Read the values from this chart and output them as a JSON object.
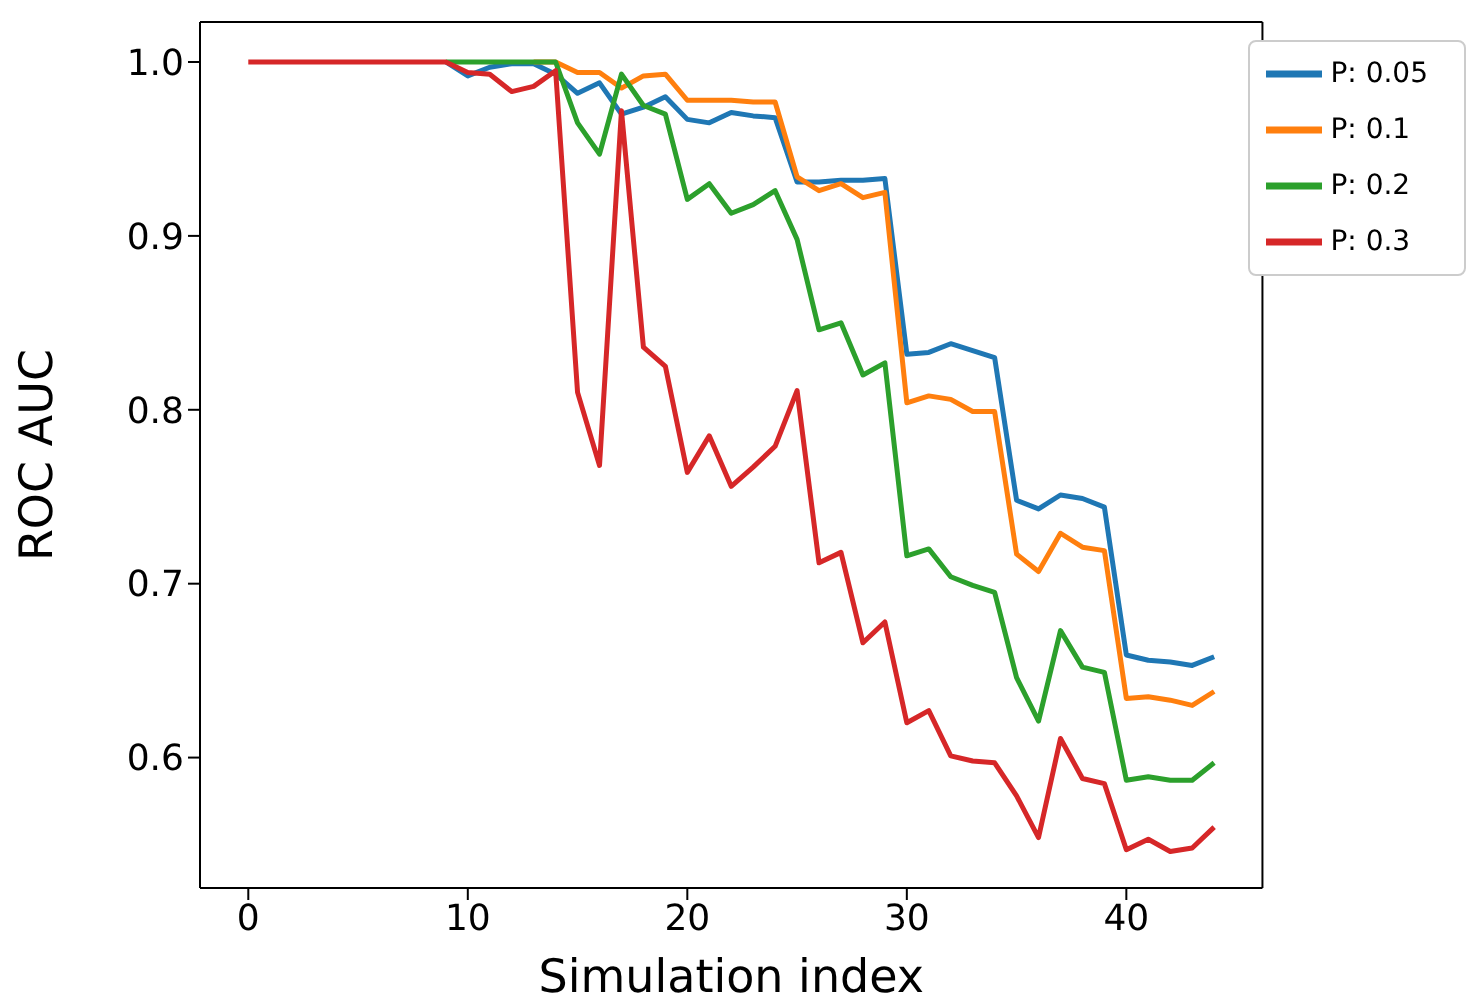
{
  "chart_data": {
    "type": "line",
    "xlabel": "Simulation index",
    "ylabel": "ROC AUC",
    "x": [
      0,
      1,
      2,
      3,
      4,
      5,
      6,
      7,
      8,
      9,
      10,
      11,
      12,
      13,
      14,
      15,
      16,
      17,
      18,
      19,
      20,
      21,
      22,
      23,
      24,
      25,
      26,
      27,
      28,
      29,
      30,
      31,
      32,
      33,
      34,
      35,
      36,
      37,
      38,
      39,
      40,
      41,
      42,
      43,
      44
    ],
    "series": [
      {
        "name": "P: 0.05",
        "color": "#1f77b4",
        "values": [
          null,
          null,
          null,
          null,
          null,
          null,
          null,
          null,
          null,
          1.0,
          0.992,
          0.997,
          0.999,
          0.999,
          0.993,
          0.982,
          0.988,
          0.97,
          0.974,
          0.98,
          0.967,
          0.965,
          0.971,
          0.969,
          0.968,
          0.931,
          0.931,
          0.932,
          0.932,
          0.933,
          0.832,
          0.833,
          0.838,
          0.834,
          0.83,
          0.748,
          0.743,
          0.751,
          0.749,
          0.744,
          0.659,
          0.656,
          0.655,
          0.653,
          0.658
        ]
      },
      {
        "name": "P: 0.1",
        "color": "#ff7f0e",
        "values": [
          null,
          null,
          null,
          null,
          null,
          null,
          null,
          null,
          null,
          null,
          null,
          null,
          null,
          1.0,
          1.0,
          0.994,
          0.994,
          0.985,
          0.992,
          0.993,
          0.978,
          0.978,
          0.978,
          0.977,
          0.977,
          0.934,
          0.926,
          0.93,
          0.922,
          0.925,
          0.804,
          0.808,
          0.806,
          0.799,
          0.799,
          0.717,
          0.707,
          0.729,
          0.721,
          0.719,
          0.634,
          0.635,
          0.633,
          0.63,
          0.638
        ]
      },
      {
        "name": "P: 0.2",
        "color": "#2ca02c",
        "values": [
          null,
          null,
          null,
          null,
          null,
          null,
          null,
          null,
          null,
          1.0,
          1.0,
          1.0,
          1.0,
          1.0,
          1.0,
          0.965,
          0.947,
          0.993,
          0.975,
          0.97,
          0.921,
          0.93,
          0.913,
          0.918,
          0.926,
          0.898,
          0.846,
          0.85,
          0.82,
          0.827,
          0.716,
          0.72,
          0.704,
          0.699,
          0.695,
          0.646,
          0.621,
          0.673,
          0.652,
          0.649,
          0.587,
          0.589,
          0.587,
          0.587,
          0.597
        ]
      },
      {
        "name": "P: 0.3",
        "color": "#d62728",
        "values": [
          1.0,
          1.0,
          1.0,
          1.0,
          1.0,
          1.0,
          1.0,
          1.0,
          1.0,
          1.0,
          0.994,
          0.993,
          0.983,
          0.986,
          0.995,
          0.81,
          0.768,
          0.972,
          0.836,
          0.825,
          0.764,
          0.785,
          0.756,
          0.767,
          0.779,
          0.811,
          0.712,
          0.718,
          0.666,
          0.678,
          0.62,
          0.627,
          0.601,
          0.598,
          0.597,
          0.578,
          0.554,
          0.611,
          0.588,
          0.585,
          0.547,
          0.553,
          0.546,
          0.548,
          0.56
        ]
      }
    ],
    "xlim": [
      -2.2,
      46.2
    ],
    "ylim": [
      0.525,
      1.023
    ],
    "xticks": [
      0,
      10,
      20,
      30,
      40
    ],
    "yticks": [
      {
        "value": 0.6,
        "label": "0.6"
      },
      {
        "value": 0.7,
        "label": "0.7"
      },
      {
        "value": 0.8,
        "label": "0.8"
      },
      {
        "value": 0.9,
        "label": "0.9"
      },
      {
        "value": 1.0,
        "label": "1.0"
      }
    ],
    "grid": false,
    "legend": "top right",
    "marker": "none",
    "line_style": "solid"
  }
}
